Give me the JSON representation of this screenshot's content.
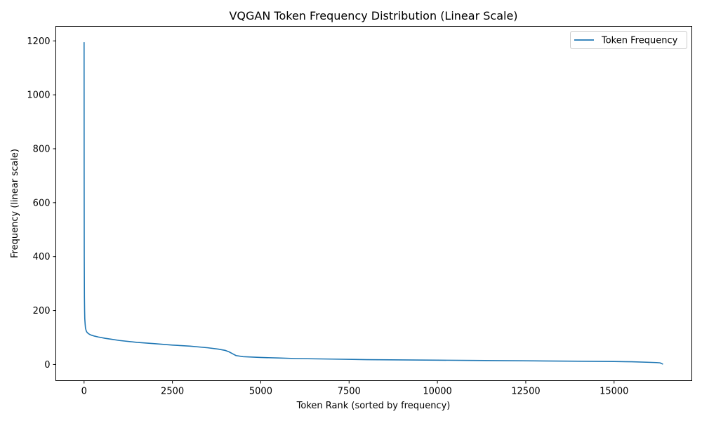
{
  "chart_data": {
    "type": "line",
    "title": "VQGAN Token Frequency Distribution (Linear Scale)",
    "xlabel": "Token Rank (sorted by frequency)",
    "ylabel": "Frequency (linear scale)",
    "xlim": [
      -800,
      17200
    ],
    "ylim": [
      -60,
      1254
    ],
    "xticks": [
      0,
      2500,
      5000,
      7500,
      10000,
      12500,
      15000
    ],
    "yticks": [
      0,
      200,
      400,
      600,
      800,
      1000,
      1200
    ],
    "grid": false,
    "legend_position": "top-right",
    "series": [
      {
        "name": "Token Frequency",
        "color": "#1f77b4",
        "x": [
          0,
          2,
          5,
          10,
          15,
          20,
          30,
          40,
          60,
          80,
          100,
          150,
          200,
          300,
          400,
          600,
          800,
          1000,
          1500,
          2000,
          2500,
          3000,
          3500,
          3800,
          4000,
          4100,
          4200,
          4300,
          4500,
          5000,
          5500,
          6000,
          7000,
          8000,
          9000,
          10000,
          11000,
          12000,
          13000,
          14000,
          15000,
          15500,
          16000,
          16200,
          16300,
          16384
        ],
        "y": [
          1195,
          700,
          400,
          250,
          200,
          170,
          150,
          135,
          125,
          120,
          117,
          112,
          109,
          105,
          102,
          97,
          93,
          89,
          82,
          77,
          72,
          68,
          62,
          57,
          52,
          47,
          40,
          33,
          29,
          26,
          24,
          22,
          20,
          18,
          17,
          16,
          15,
          14,
          13,
          12,
          11,
          10,
          8,
          7,
          6,
          1
        ]
      }
    ]
  }
}
